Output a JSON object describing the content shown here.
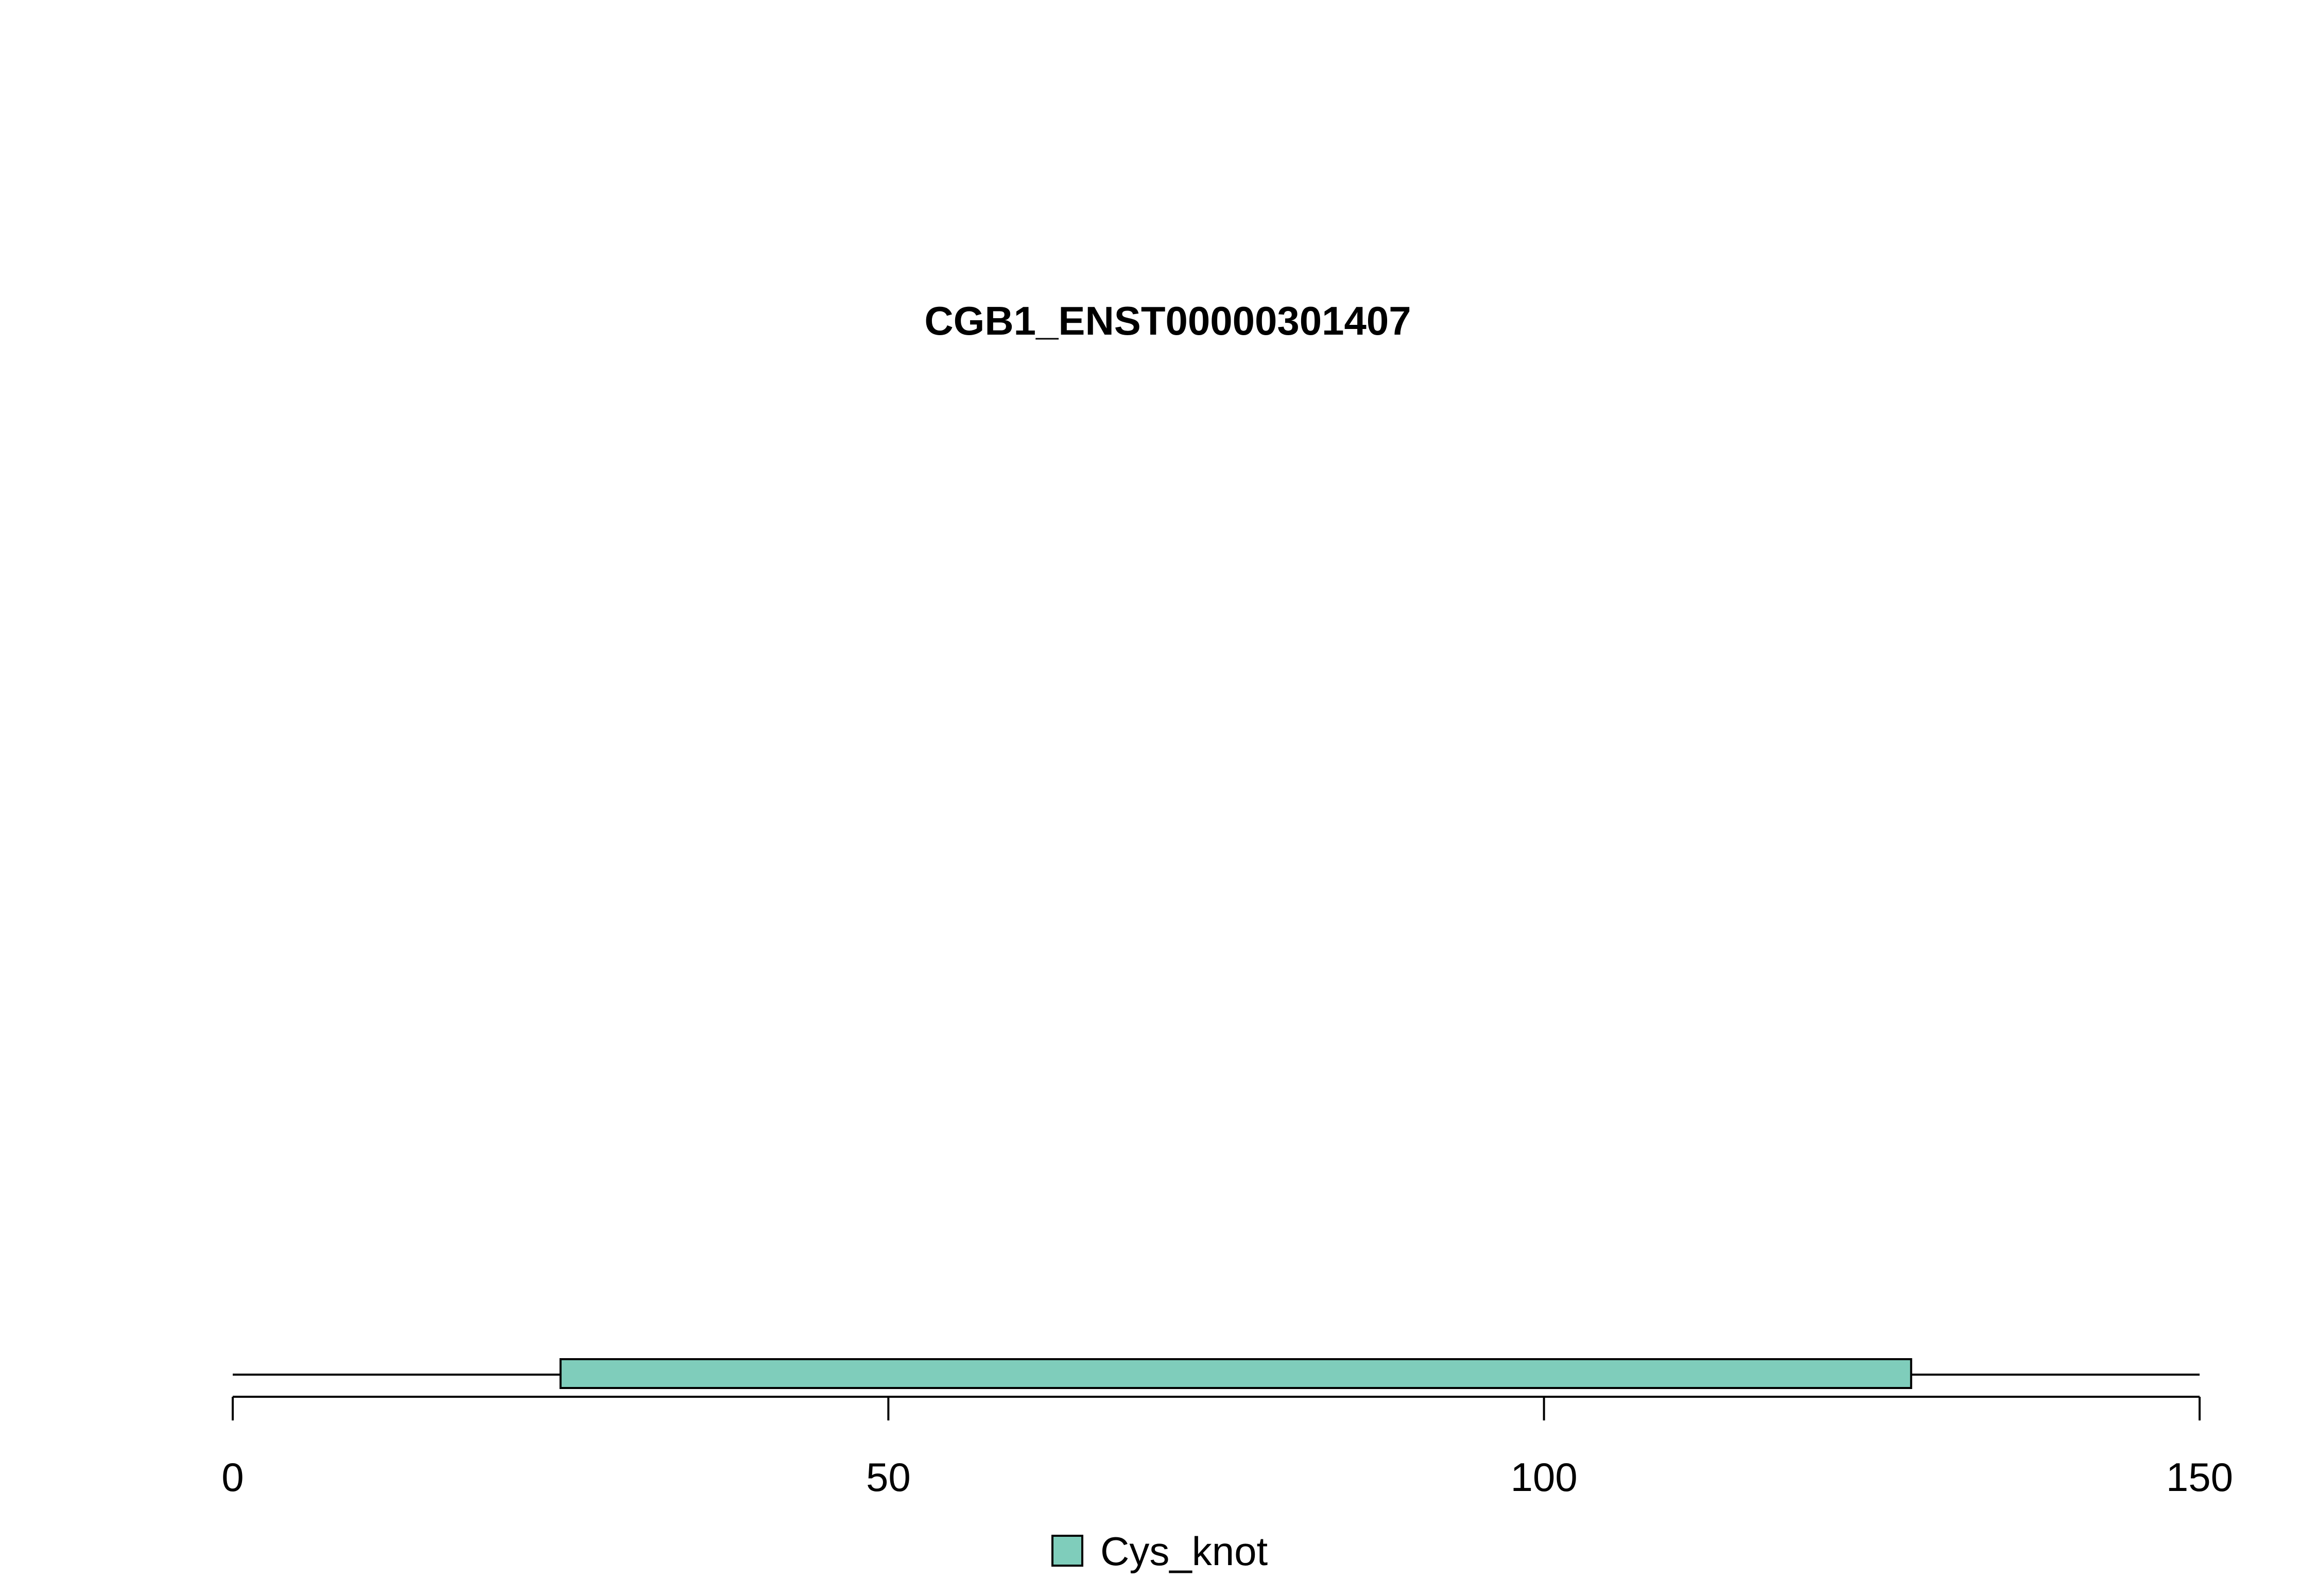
{
  "chart_data": {
    "type": "bar",
    "title": "CGB1_ENST00000301407",
    "xlabel": "",
    "ylabel": "",
    "xlim": [
      0,
      150
    ],
    "grid": false,
    "legend_position": "bottom-center",
    "protein_length": 150,
    "domains": [
      {
        "name": "Cys_knot",
        "start": 25,
        "end": 128,
        "color": "#7fcdbb"
      }
    ],
    "x_ticks": [
      0,
      50,
      100,
      150
    ],
    "x_tick_labels": [
      "0",
      "50",
      "100",
      "150"
    ],
    "legend": [
      {
        "label": "Cys_knot",
        "color": "#7fcdbb"
      }
    ]
  }
}
